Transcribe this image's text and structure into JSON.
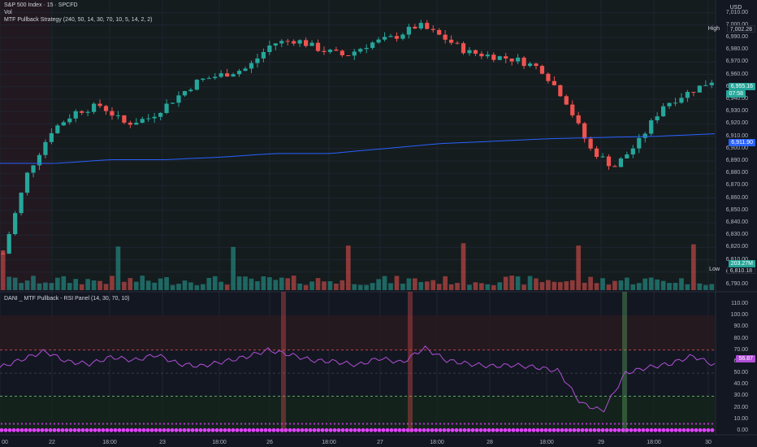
{
  "header": {
    "symbol_line": "S&P 500 Index · 15 · SPCFD",
    "vol_label": "Vol",
    "strategy_label": "MTF Pullback Strategy (240, 50, 14, 30, 70, 10, 5, 14, 2, 2)",
    "currency": "USD"
  },
  "rsi_panel": {
    "title": "DANI _ MTF Pullback - RSI Panel (14, 30, 70, 10)",
    "value_tag": "56.87"
  },
  "price_axis": {
    "labels": [
      "7,010.00",
      "7,000.00",
      "6,990.00",
      "6,980.00",
      "6,970.00",
      "6,960.00",
      "6,950.00",
      "6,940.00",
      "6,930.00",
      "6,920.00",
      "6,910.00",
      "6,900.00",
      "6,890.00",
      "6,880.00",
      "6,870.00",
      "6,860.00",
      "6,850.00",
      "6,840.00",
      "6,830.00",
      "6,820.00",
      "6,810.00",
      "6,800.00",
      "6,790.00"
    ],
    "high_label": "High",
    "high_value": "7,002.28",
    "low_label": "Low",
    "low_value": "6,810.18",
    "last_price": "6,955.16",
    "countdown": "07:58",
    "ma_value": "6,911.90",
    "volume_value": "203.27M"
  },
  "rsi_axis": {
    "labels": [
      "110.00",
      "100.00",
      "90.00",
      "80.00",
      "70.00",
      "60.00",
      "50.00",
      "40.00",
      "30.00",
      "20.00",
      "10.00",
      "0.00"
    ]
  },
  "time_axis": {
    "labels": [
      "00",
      "22",
      "18:00",
      "23",
      "18:00",
      "26",
      "18:00",
      "27",
      "18:00",
      "28",
      "18:00",
      "29",
      "18:00",
      "30"
    ]
  },
  "colors": {
    "background": "#131722",
    "up": "#26a69a",
    "down": "#ef5350",
    "ma_line": "#2962ff",
    "rsi_line": "#b14fd6",
    "rsi_ob": "#ef5350",
    "rsi_os": "#66bb6a",
    "dots": "#e040fb"
  },
  "chart_data": [
    {
      "type": "candlestick",
      "title": "S&P 500 Index · 15 · SPCFD",
      "ylim": [
        6790,
        7015
      ],
      "ma_series": [
        6888,
        6888,
        6891,
        6891,
        6893,
        6896,
        6896,
        6900,
        6904,
        6906,
        6908,
        6909,
        6910,
        6912
      ],
      "close_series": [
        6815,
        6880,
        6915,
        6930,
        6935,
        6920,
        6925,
        6940,
        6955,
        6960,
        6965,
        6985,
        6988,
        6980,
        6975,
        6985,
        6990,
        7000,
        6990,
        6978,
        6975,
        6972,
        6965,
        6940,
        6900,
        6885,
        6905,
        6935,
        6945,
        6955
      ]
    },
    {
      "type": "line",
      "title": "DANI _ MTF Pullback - RSI Panel (14, 30, 70, 10)",
      "ylim": [
        0,
        110
      ],
      "levels": [
        30,
        50,
        70
      ],
      "values": [
        55,
        62,
        69,
        60,
        58,
        64,
        61,
        66,
        58,
        56,
        60,
        64,
        70,
        66,
        61,
        60,
        57,
        63,
        59,
        72,
        61,
        58,
        56,
        57,
        55,
        52,
        24,
        17,
        50,
        55,
        58,
        65,
        57
      ]
    }
  ]
}
